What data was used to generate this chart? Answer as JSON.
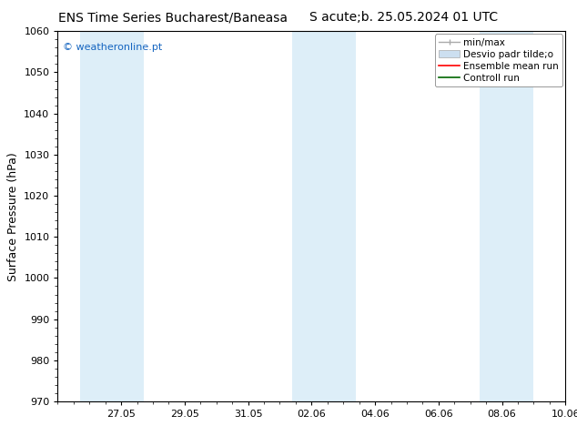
{
  "title_left": "ENS Time Series Bucharest/Baneasa",
  "title_right": "S acute;b. 25.05.2024 01 UTC",
  "ylabel": "Surface Pressure (hPa)",
  "ylim": [
    970,
    1060
  ],
  "yticks": [
    970,
    980,
    990,
    1000,
    1010,
    1020,
    1030,
    1040,
    1050,
    1060
  ],
  "xtick_labels": [
    "27.05",
    "29.05",
    "31.05",
    "02.06",
    "04.06",
    "06.06",
    "08.06",
    "10.06"
  ],
  "xtick_positions": [
    2,
    4,
    6,
    8,
    10,
    12,
    14,
    16
  ],
  "xlim": [
    0,
    16
  ],
  "watermark": "© weatheronline.pt",
  "watermark_color": "#1565C0",
  "background_color": "#ffffff",
  "plot_bg_color": "#ffffff",
  "shaded_band_color": "#ddeef8",
  "band1_start": 0.7,
  "band1_end": 2.7,
  "band2_start": 7.4,
  "band2_end": 9.4,
  "band3_start": 13.3,
  "band3_end": 15.0,
  "title_fontsize": 10,
  "tick_fontsize": 8,
  "ylabel_fontsize": 9,
  "legend_fontsize": 7.5,
  "watermark_fontsize": 8
}
